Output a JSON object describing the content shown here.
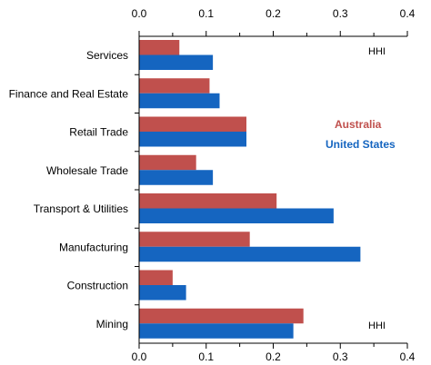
{
  "chart_data": {
    "type": "bar",
    "orientation": "horizontal",
    "categories": [
      "Services",
      "Finance and Real Estate",
      "Retail Trade",
      "Wholesale Trade",
      "Transport & Utilities",
      "Manufacturing",
      "Construction",
      "Mining"
    ],
    "series": [
      {
        "name": "Australia",
        "color": "#c0504d",
        "values": [
          0.06,
          0.105,
          0.16,
          0.085,
          0.205,
          0.165,
          0.05,
          0.245
        ]
      },
      {
        "name": "United States",
        "color": "#1565c0",
        "values": [
          0.11,
          0.12,
          0.16,
          0.11,
          0.29,
          0.33,
          0.07,
          0.23
        ]
      }
    ],
    "xlim": [
      0.0,
      0.4
    ],
    "xticks": [
      "0.0",
      "0.1",
      "0.2",
      "0.3",
      "0.4"
    ],
    "xticks_minor": true,
    "annotations": [
      "HHI",
      "HHI"
    ],
    "legend_placement": "right-inside",
    "title": "",
    "xlabel": "",
    "ylabel": "",
    "grid": false
  }
}
